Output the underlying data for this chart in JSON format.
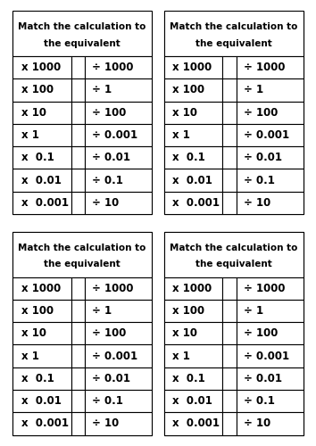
{
  "title_line1": "Match the calculation to",
  "title_line2": "the equivalent",
  "left_col": [
    "x 1000",
    "x 100",
    "x 10",
    "x 1",
    "x  0.1",
    "x  0.01",
    "x  0.001"
  ],
  "right_col": [
    "÷ 1000",
    "÷ 1",
    "÷ 100",
    "÷ 0.001",
    "÷ 0.01",
    "÷ 0.1",
    "÷ 10"
  ],
  "background_color": "#ffffff",
  "border_color": "#000000",
  "text_color": "#000000",
  "title_fontsize": 7.5,
  "cell_fontsize": 8.5,
  "fig_width": 3.54,
  "fig_height": 5.0
}
